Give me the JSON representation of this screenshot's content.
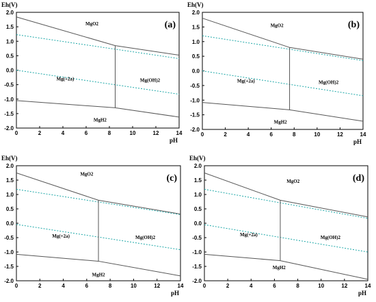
{
  "colors": {
    "boundary": "#555555",
    "water_line": "#1aa6a6",
    "frame": "#000000"
  },
  "chart_data": [
    {
      "type": "line",
      "panel": "(a)",
      "ylabel": "Eh(V)",
      "xlabel": "pH",
      "xlim": [
        0,
        14
      ],
      "ylim": [
        -2.0,
        2.0
      ],
      "xticks": [
        "0",
        "2",
        "4",
        "6",
        "8",
        "10",
        "12",
        "14"
      ],
      "yticks": [
        "2.0",
        "1.5",
        "1.0",
        "0.5",
        "0.0",
        "-0.5",
        "-1.0",
        "-1.5",
        "-2.0"
      ],
      "boundaries": [
        {
          "x": [
            0,
            8.5,
            14
          ],
          "y": [
            1.84,
            0.85,
            0.52
          ]
        },
        {
          "x": [
            0,
            8.5,
            14
          ],
          "y": [
            -1.05,
            -1.3,
            -1.62
          ]
        },
        {
          "x": [
            8.5,
            8.5
          ],
          "y": [
            0.85,
            -1.3
          ]
        }
      ],
      "water_lines": [
        {
          "x": [
            0,
            14
          ],
          "y": [
            1.23,
            0.4
          ]
        },
        {
          "x": [
            0,
            14
          ],
          "y": [
            0.0,
            -0.83
          ]
        }
      ],
      "regions": [
        {
          "label": "MgO2",
          "x": 6.5,
          "y": 1.55
        },
        {
          "label": "Mg(+2a)",
          "x": 4.2,
          "y": -0.35
        },
        {
          "label": "Mg(OH)2",
          "x": 11.5,
          "y": -0.4
        },
        {
          "label": "MgH2",
          "x": 7.2,
          "y": -1.78
        }
      ]
    },
    {
      "type": "line",
      "panel": "(b)",
      "ylabel": "Eh(V)",
      "xlabel": "pH",
      "xlim": [
        0,
        14
      ],
      "ylim": [
        -2.0,
        2.0
      ],
      "xticks": [
        "0",
        "2",
        "4",
        "6",
        "8",
        "10",
        "12",
        "14"
      ],
      "yticks": [
        "2.0",
        "1.5",
        "1.0",
        "0.5",
        "0.0",
        "-0.5",
        "-1.0",
        "-1.5",
        "-2.0"
      ],
      "boundaries": [
        {
          "x": [
            0,
            7.6,
            14
          ],
          "y": [
            1.8,
            0.8,
            0.4
          ]
        },
        {
          "x": [
            0,
            7.6,
            14
          ],
          "y": [
            -1.08,
            -1.33,
            -1.72
          ]
        },
        {
          "x": [
            7.6,
            7.6
          ],
          "y": [
            0.8,
            -1.33
          ]
        }
      ],
      "water_lines": [
        {
          "x": [
            0,
            14
          ],
          "y": [
            1.2,
            0.35
          ]
        },
        {
          "x": [
            0,
            14
          ],
          "y": [
            0.0,
            -0.85
          ]
        }
      ],
      "regions": [
        {
          "label": "MgO2",
          "x": 6.5,
          "y": 1.5
        },
        {
          "label": "Mg(+2a)",
          "x": 3.8,
          "y": -0.4
        },
        {
          "label": "Mg(OH)2",
          "x": 11.0,
          "y": -0.45
        },
        {
          "label": "MgH2",
          "x": 6.8,
          "y": -1.8
        }
      ]
    },
    {
      "type": "line",
      "panel": "(c)",
      "ylabel": "Eh(V)",
      "xlabel": "pH",
      "xlim": [
        0,
        14
      ],
      "ylim": [
        -2.0,
        2.0
      ],
      "xticks": [
        "0",
        "2",
        "4",
        "6",
        "8",
        "10",
        "12",
        "14"
      ],
      "yticks": [
        "2.0",
        "1.5",
        "1.0",
        "0.5",
        "0.0",
        "-0.5",
        "-1.0",
        "-1.5",
        "-2.0"
      ],
      "boundaries": [
        {
          "x": [
            0,
            7.0,
            14
          ],
          "y": [
            1.75,
            0.8,
            0.32
          ]
        },
        {
          "x": [
            0,
            7.0,
            14
          ],
          "y": [
            -1.08,
            -1.32,
            -1.83
          ]
        },
        {
          "x": [
            7.0,
            7.0
          ],
          "y": [
            0.8,
            -1.32
          ]
        }
      ],
      "water_lines": [
        {
          "x": [
            0,
            14
          ],
          "y": [
            1.18,
            0.3
          ]
        },
        {
          "x": [
            0,
            14
          ],
          "y": [
            -0.04,
            -0.92
          ]
        }
      ],
      "regions": [
        {
          "label": "MgO2",
          "x": 6.0,
          "y": 1.65
        },
        {
          "label": "Mg(+2a)",
          "x": 3.8,
          "y": -0.5
        },
        {
          "label": "Mg(OH)2",
          "x": 11.0,
          "y": -0.55
        },
        {
          "label": "MgH2",
          "x": 7.0,
          "y": -1.85
        }
      ]
    },
    {
      "type": "line",
      "panel": "(d)",
      "ylabel": "Eh(V)",
      "xlabel": "pH",
      "xlim": [
        0,
        14
      ],
      "ylim": [
        -2.0,
        2.0
      ],
      "xticks": [
        "0",
        "2",
        "4",
        "6",
        "8",
        "10",
        "12",
        "14"
      ],
      "yticks": [
        "2.0",
        "1.5",
        "1.0",
        "0.5",
        "0.0",
        "-0.5",
        "-1.0",
        "-1.5",
        "-2.0"
      ],
      "boundaries": [
        {
          "x": [
            0,
            6.5,
            14
          ],
          "y": [
            1.75,
            0.8,
            0.22
          ]
        },
        {
          "x": [
            0,
            6.5,
            14
          ],
          "y": [
            -1.08,
            -1.3,
            -1.95
          ]
        },
        {
          "x": [
            6.5,
            6.5
          ],
          "y": [
            0.8,
            -1.3
          ]
        }
      ],
      "water_lines": [
        {
          "x": [
            0,
            14
          ],
          "y": [
            1.18,
            0.17
          ]
        },
        {
          "x": [
            0,
            14
          ],
          "y": [
            -0.05,
            -1.0
          ]
        }
      ],
      "regions": [
        {
          "label": "MgO2",
          "x": 7.6,
          "y": 1.4
        },
        {
          "label": "Mg(+2a)",
          "x": 3.8,
          "y": -0.45
        },
        {
          "label": "Mg(OH)2",
          "x": 10.8,
          "y": -0.55
        },
        {
          "label": "MgH2",
          "x": 6.4,
          "y": -1.6
        }
      ]
    }
  ]
}
